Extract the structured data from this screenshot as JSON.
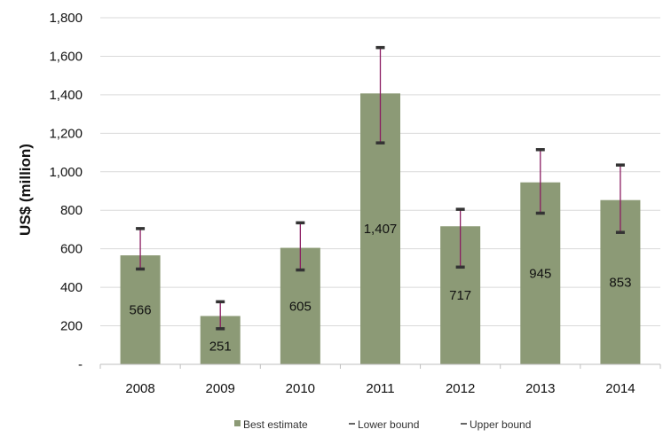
{
  "chart_data": {
    "type": "bar",
    "categories": [
      "2008",
      "2009",
      "2010",
      "2011",
      "2012",
      "2013",
      "2014"
    ],
    "series": [
      {
        "name": "Best estimate",
        "values": [
          566,
          251,
          605,
          1407,
          717,
          945,
          853
        ],
        "color": "#8c9a76"
      },
      {
        "name": "Lower bound",
        "values": [
          495,
          185,
          490,
          1150,
          505,
          785,
          685
        ],
        "color": "#333333"
      },
      {
        "name": "Upper bound",
        "values": [
          705,
          325,
          735,
          1645,
          805,
          1115,
          1035
        ],
        "color": "#333333"
      }
    ],
    "data_labels": [
      "566",
      "251",
      "605",
      "1,407",
      "717",
      "945",
      "853"
    ],
    "y_tick_labels": [
      "-",
      "200",
      "400",
      "600",
      "800",
      "1,000",
      "1,200",
      "1,400",
      "1,600",
      "1,800"
    ],
    "y_tick_values": [
      0,
      200,
      400,
      600,
      800,
      1000,
      1200,
      1400,
      1600,
      1800
    ],
    "ylabel": "US$ (million)",
    "xlabel": "",
    "title": "",
    "ylim": [
      0,
      1800
    ],
    "error_bar_color": "#8b1c62",
    "error_cap_color": "#333333",
    "grid": true,
    "grid_color": "#d9d9d9",
    "legend_position": "bottom"
  }
}
